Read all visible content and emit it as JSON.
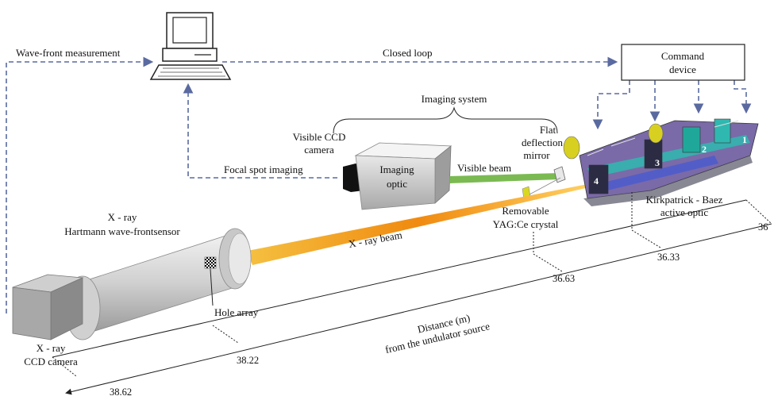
{
  "labels": {
    "wavefront": "Wave-front measurement",
    "closed_loop": "Closed loop",
    "command_1": "Command",
    "command_2": "device",
    "imaging_system": "Imaging system",
    "visible_ccd_1": "Visible CCD",
    "visible_ccd_2": "camera",
    "imaging_optic_1": "Imaging",
    "imaging_optic_2": "optic",
    "focal_spot": "Focal spot imaging",
    "visible_beam": "Visible beam",
    "flat_mirror_1": "Flat",
    "flat_mirror_2": "deflection",
    "flat_mirror_3": "mirror",
    "xray_hartmann_1": "X - ray",
    "xray_hartmann_2": "Hartmann wave-frontsensor",
    "xray_beam": "X - ray beam",
    "removable_1": "Removable",
    "removable_2": "YAG:Ce crystal",
    "kb_1": "Kirkpatrick - Baez",
    "kb_2": "active optic",
    "hole_array": "Hole array",
    "distance_1": "Distance (m)",
    "distance_2": "from the undulator source",
    "xray_ccd_1": "X - ray",
    "xray_ccd_2": "CCD camera"
  },
  "distances": {
    "d1": "36",
    "d2": "36.33",
    "d3": "36.63",
    "d4": "38.22",
    "d5": "38.62"
  },
  "actuators": [
    "1",
    "2",
    "3",
    "4"
  ],
  "colors": {
    "feedback": "#5a6aa0",
    "visible_beam": "#6db33f",
    "xray_beam": "#f0a020",
    "kb_body": "#7a6aa8",
    "kb_accent": "#2fb8b0"
  }
}
